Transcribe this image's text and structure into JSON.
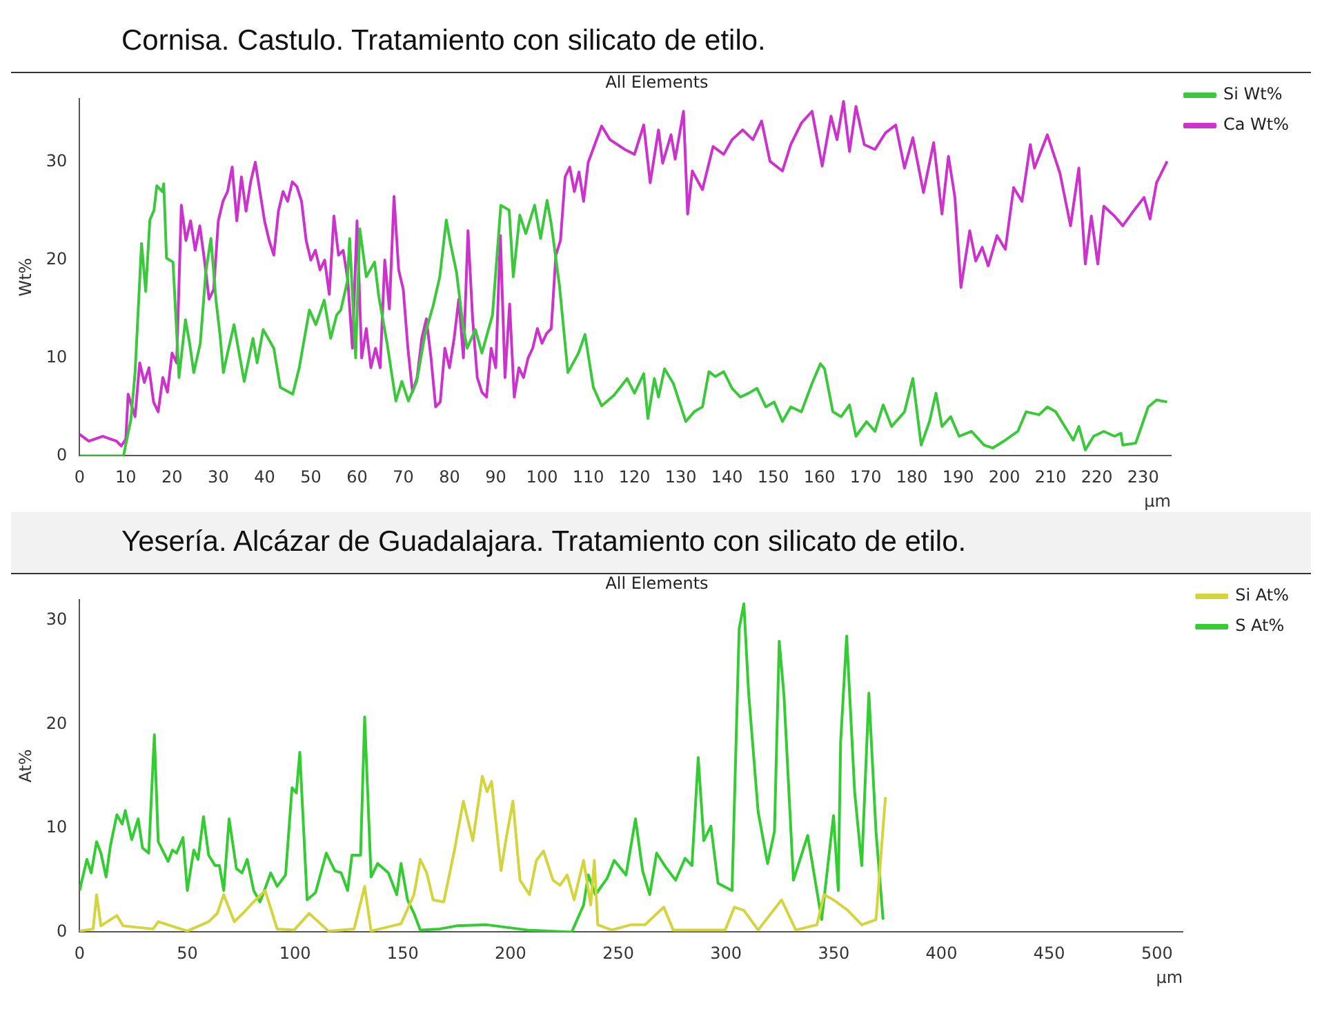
{
  "chart_data": [
    {
      "type": "line",
      "title": "Cornisa. Castulo. Tratamiento con silicato de etilo.",
      "subtitle": "All Elements",
      "xlabel": "µm",
      "ylabel": "Wt%",
      "xlim": [
        0,
        236
      ],
      "ylim": [
        0,
        36.5
      ],
      "xticks": [
        0,
        10,
        20,
        30,
        40,
        50,
        60,
        70,
        80,
        90,
        100,
        110,
        120,
        130,
        140,
        150,
        160,
        170,
        180,
        190,
        200,
        210,
        220,
        230
      ],
      "yticks": [
        0,
        10,
        20,
        30
      ],
      "grid": false,
      "legend": "top right",
      "marker": "none",
      "series": [
        {
          "name": "Si Wt%",
          "color": "#3cc83c",
          "x": [
            0,
            5,
            9.5,
            11.1,
            12,
            13.4,
            14.3,
            15.2,
            16.1,
            16.7,
            17.9,
            18.2,
            18.8,
            20.2,
            21.5,
            22.9,
            23.8,
            24.7,
            26.1,
            27.3,
            28.4,
            29.5,
            30.4,
            31.1,
            32,
            33.4,
            35.6,
            37.5,
            38.4,
            39.7,
            42,
            43.4,
            46.1,
            47.5,
            49.7,
            51.1,
            52.9,
            54.3,
            55.6,
            56.5,
            57.9,
            58.4,
            59.7,
            60.6,
            62,
            63.8,
            64.7,
            66.5,
            68.4,
            69.7,
            71.1,
            72.9,
            74.7,
            76.5,
            77.9,
            79.3,
            80.2,
            81.5,
            82.9,
            83.8,
            85.6,
            87,
            89.3,
            91.1,
            92.9,
            93.8,
            95.2,
            96.5,
            98.4,
            99.7,
            101.1,
            102,
            103.8,
            105.6,
            107.9,
            109.3,
            111.1,
            112.9,
            115.6,
            118.4,
            120,
            122,
            122.9,
            124.3,
            125.2,
            126.5,
            128.4,
            131.1,
            132.9,
            134.7,
            136.1,
            137.5,
            139.3,
            141.1,
            142.9,
            144.7,
            146.5,
            148.4,
            150.2,
            152,
            153.8,
            156.1,
            158.4,
            160.2,
            161.1,
            162.9,
            164.7,
            166.5,
            167.9,
            170.2,
            172,
            173.8,
            175.6,
            178.4,
            180.2,
            182,
            183.8,
            185.2,
            186.5,
            188.4,
            190.2,
            192.9,
            195.6,
            197.5,
            200.2,
            202.9,
            204.7,
            207.5,
            209.3,
            211.1,
            214.9,
            216.1,
            217.5,
            219.3,
            221.5,
            223.8,
            225.2,
            225.6,
            228.4,
            231.1,
            232.9,
            235.2
          ],
          "values": [
            0,
            0,
            0,
            3.7,
            8.5,
            21.7,
            16.8,
            24.1,
            25.1,
            27.6,
            27,
            27.8,
            20.2,
            19.8,
            8,
            13.9,
            11.5,
            8.5,
            11.5,
            18.8,
            22.2,
            15.9,
            12.2,
            8.5,
            10.5,
            13.4,
            7.6,
            12,
            9.5,
            12.9,
            11,
            7,
            6.3,
            9,
            14.9,
            13.4,
            15.9,
            12,
            14.4,
            14.9,
            17.8,
            22.2,
            10,
            23.2,
            18.3,
            19.8,
            16.3,
            11.5,
            5.6,
            7.6,
            5.6,
            7.6,
            12.4,
            15.4,
            18.3,
            24.1,
            21.7,
            18.8,
            13.4,
            11,
            12.9,
            10.5,
            14.4,
            25.6,
            25.1,
            18.3,
            24.6,
            22.7,
            25.6,
            22.2,
            26.1,
            23.7,
            17.3,
            8.5,
            10.5,
            12.4,
            7,
            5.1,
            6.2,
            7.9,
            6.4,
            8.4,
            3.8,
            7.9,
            6,
            8.9,
            7.4,
            3.5,
            4.5,
            5,
            8.6,
            8.1,
            8.6,
            6.9,
            6,
            6.4,
            6.9,
            5,
            5.5,
            3.5,
            5,
            4.5,
            7.4,
            9.4,
            8.9,
            4.5,
            4,
            5.2,
            2,
            3.5,
            2.5,
            5.2,
            3,
            4.5,
            7.9,
            1.1,
            3.5,
            6.4,
            3,
            4,
            2,
            2.5,
            1.1,
            0.8,
            1.6,
            2.5,
            4.5,
            4.2,
            5,
            4.5,
            1.6,
            3,
            0.6,
            2,
            2.5,
            2,
            2.3,
            1.1,
            1.3,
            5,
            5.7,
            5.5
          ]
        },
        {
          "name": "Ca Wt%",
          "color": "#cc33cc",
          "x": [
            0,
            2,
            5,
            8,
            9,
            10,
            10.5,
            12,
            13,
            14,
            15,
            16,
            17,
            18,
            19,
            20,
            21,
            22,
            23,
            24,
            25,
            26,
            27,
            28,
            29,
            30,
            31,
            32,
            33,
            34,
            35,
            36,
            37,
            38,
            39,
            40,
            41,
            42,
            43,
            44,
            45,
            46,
            47,
            48,
            49,
            50,
            51,
            52,
            53,
            54,
            55,
            56,
            57,
            58,
            59,
            60,
            61,
            62,
            63,
            64,
            65,
            66,
            67,
            68,
            69,
            70,
            71,
            72,
            73,
            74,
            75,
            76,
            77,
            78,
            79,
            80,
            81,
            82,
            83,
            84,
            85,
            86,
            87,
            88,
            89,
            90,
            91,
            92,
            93,
            94,
            95,
            96,
            97,
            98,
            99,
            100,
            101,
            102,
            103,
            104,
            105,
            106,
            107,
            108,
            109,
            110,
            112.9,
            114.7,
            117.9,
            120,
            122,
            123.4,
            125.2,
            126.1,
            127.9,
            128.8,
            130.6,
            131.5,
            132.5,
            134.7,
            137,
            139.3,
            141.1,
            143.4,
            145.6,
            147.5,
            149.3,
            152,
            153.8,
            156.1,
            158.4,
            160.6,
            162.5,
            163.8,
            165.2,
            166.5,
            167.9,
            169.7,
            172,
            174.3,
            176.5,
            178.4,
            180.2,
            182.5,
            184.7,
            186.5,
            187.9,
            189.3,
            190.6,
            192.5,
            193.8,
            195.2,
            196.5,
            198.4,
            200.2,
            202,
            203.8,
            205.6,
            206.5,
            209.3,
            210.6,
            212,
            214.3,
            216.1,
            217.5,
            218.8,
            220.2,
            221.5,
            223.8,
            225.6,
            227.9,
            230.2,
            231.5,
            232.9,
            235.2
          ],
          "values": [
            2.2,
            1.5,
            2,
            1.5,
            1,
            1.7,
            6.3,
            4,
            9.5,
            7.5,
            9,
            5.5,
            4.5,
            8,
            6.5,
            10.5,
            9.5,
            25.6,
            22,
            24,
            21,
            23.5,
            20,
            16,
            17,
            24,
            26,
            27,
            29.5,
            24,
            28.5,
            25,
            28,
            30,
            27,
            24,
            22,
            20.5,
            25,
            27,
            26,
            28,
            27.5,
            26,
            22,
            20,
            21,
            19,
            20,
            16.5,
            24.5,
            20.5,
            21,
            18,
            11,
            24,
            10,
            13,
            9,
            11,
            9,
            20,
            15,
            26.5,
            19,
            17,
            11,
            6.5,
            8,
            12,
            14,
            10,
            5,
            5.5,
            11,
            9,
            12,
            16,
            10,
            23,
            14,
            8,
            6.5,
            6,
            11,
            9,
            22.5,
            8,
            15.5,
            6,
            9,
            8,
            10,
            11,
            13,
            11.5,
            12.5,
            13,
            20.5,
            22,
            28.5,
            29.5,
            27,
            29,
            26,
            30,
            33.7,
            32.3,
            31.3,
            30.8,
            33.8,
            27.9,
            33.3,
            29.9,
            32.8,
            30.3,
            35.2,
            24.7,
            29.1,
            27.2,
            31.6,
            30.8,
            32.3,
            33.3,
            32.3,
            34.2,
            30.1,
            29.1,
            31.8,
            34,
            35.2,
            29.6,
            34.7,
            32.3,
            36.2,
            31.1,
            35.7,
            31.8,
            31.3,
            33,
            33.8,
            29.4,
            32.5,
            26.9,
            32,
            24.7,
            30.6,
            26.4,
            17.2,
            23,
            19.9,
            21.3,
            19.4,
            22.5,
            21.1,
            27.4,
            26,
            31.8,
            29.4,
            32.8,
            30.9,
            28.9,
            23.5,
            29.4,
            19.6,
            24.5,
            19.6,
            25.5,
            24.5,
            23.5,
            25,
            26.4,
            24.2,
            27.9,
            30.1
          ]
        }
      ]
    },
    {
      "type": "line",
      "title": "Yesería. Alcázar de Guadalajara. Tratamiento con silicato de etilo.",
      "subtitle": "All Elements",
      "xlabel": "µm",
      "ylabel": "At%",
      "xlim": [
        0,
        512
      ],
      "ylim": [
        0,
        32
      ],
      "xticks": [
        0,
        50,
        100,
        150,
        200,
        250,
        300,
        350,
        400,
        450,
        500
      ],
      "yticks": [
        0,
        10,
        20,
        30
      ],
      "grid": false,
      "legend": "top right",
      "marker": "none",
      "series": [
        {
          "name": "Si At%",
          "color": "#d4d43c",
          "x": [
            0,
            6.3,
            7.9,
            9.9,
            17.3,
            20.2,
            34.1,
            36.5,
            50,
            59.9,
            63.9,
            66.9,
            71.8,
            75.8,
            79.8,
            86.1,
            91.7,
            99.6,
            106.5,
            115.5,
            127.4,
            132.3,
            135.3,
            149.2,
            155.2,
            158.1,
            161.1,
            164.1,
            169,
            174,
            178.1,
            182.5,
            186.9,
            189.1,
            191.2,
            195.6,
            197.8,
            201.1,
            204.4,
            208.8,
            212,
            215.3,
            219.7,
            223,
            226.3,
            229.5,
            233.9,
            237.2,
            238.9,
            240.5,
            247,
            255.8,
            262.4,
            271.1,
            275.5,
            288.6,
            299.6,
            303.9,
            308.3,
            314.9,
            325.8,
            332.4,
            342.2,
            345.5,
            349.9,
            356.5,
            363,
            369.6,
            374
          ],
          "values": [
            0.1,
            0.3,
            3.6,
            0.6,
            1.6,
            0.6,
            0.3,
            1,
            0.1,
            1,
            1.8,
            3.6,
            1,
            1.8,
            2.7,
            4,
            0.3,
            0.2,
            1.8,
            0.1,
            0.3,
            4.4,
            0.1,
            0.8,
            3.6,
            7,
            5.7,
            3.1,
            2.9,
            7.9,
            12.6,
            8.8,
            15,
            13.5,
            14.5,
            5.9,
            8.8,
            12.6,
            5,
            3.6,
            6.9,
            7.8,
            5,
            4.5,
            5.5,
            3.1,
            6.9,
            2.6,
            6.9,
            0.7,
            0.2,
            0.7,
            0.7,
            2.4,
            0.2,
            0.2,
            0.2,
            2.4,
            2.1,
            0.2,
            3.1,
            0.2,
            0.7,
            3.6,
            3.1,
            2.1,
            0.7,
            1.2,
            13
          ]
        },
        {
          "name": "S At%",
          "color": "#33cc33",
          "x": [
            0,
            3.4,
            5.4,
            7.9,
            9.9,
            12.3,
            14.3,
            17.3,
            19.8,
            21.2,
            24.2,
            27.2,
            29.2,
            32.1,
            34.7,
            36.5,
            41.1,
            43.1,
            45,
            48,
            50,
            53,
            55,
            57.5,
            59.9,
            62.9,
            64.9,
            66.9,
            69.4,
            72.8,
            75.4,
            77.8,
            80.8,
            83.7,
            86.1,
            88.7,
            91.7,
            95.6,
            98.6,
            100.6,
            102.2,
            105.6,
            109.5,
            114.5,
            118.5,
            121.4,
            124.4,
            126.4,
            130.4,
            132.3,
            135.3,
            138.3,
            143.3,
            147.2,
            149.2,
            152.2,
            155.2,
            158.1,
            167.1,
            175,
            189.1,
            207.7,
            228.4,
            233.9,
            236.1,
            239.4,
            244.9,
            248.1,
            253.6,
            258,
            261.3,
            264.6,
            267.8,
            272.2,
            276.6,
            281,
            284.2,
            287.1,
            289.7,
            293,
            296.3,
            302.8,
            306.1,
            308.3,
            310.5,
            314.9,
            319.3,
            322.5,
            324.7,
            326.9,
            331.3,
            337.9,
            344.4,
            349.9,
            352.1,
            353.2,
            356,
            359.7,
            363,
            366.3,
            369.6,
            372.9
          ],
          "values": [
            4,
            7,
            5.7,
            8.7,
            7.6,
            5.3,
            8.3,
            11.3,
            10.4,
            11.7,
            8.9,
            10.9,
            8.1,
            7.6,
            19,
            8.7,
            6.8,
            7.9,
            7.6,
            9.1,
            4,
            7.9,
            7,
            11.1,
            7.4,
            6.4,
            6.4,
            4,
            10.9,
            6.1,
            5.7,
            7,
            4,
            2.9,
            4.2,
            5.7,
            4.4,
            5.5,
            13.9,
            13.4,
            17.3,
            3.1,
            3.8,
            7.6,
            5.9,
            5.7,
            4,
            7.4,
            7.4,
            20.7,
            5.3,
            6.6,
            5.7,
            3.6,
            6.6,
            3.1,
            1.8,
            0.2,
            0.3,
            0.6,
            0.7,
            0.2,
            0,
            2.6,
            5.5,
            3.6,
            5.2,
            6.9,
            5.5,
            10.9,
            5.9,
            3.6,
            7.6,
            6.2,
            5,
            7.1,
            6.4,
            16.8,
            8.8,
            10.2,
            4.7,
            4,
            29.2,
            31.6,
            23,
            11.6,
            6.6,
            9.7,
            28,
            22.8,
            5,
            9.3,
            1.2,
            11.2,
            4,
            18.3,
            28.5,
            13.5,
            6.4,
            23,
            9.7,
            1.2
          ]
        }
      ]
    }
  ]
}
